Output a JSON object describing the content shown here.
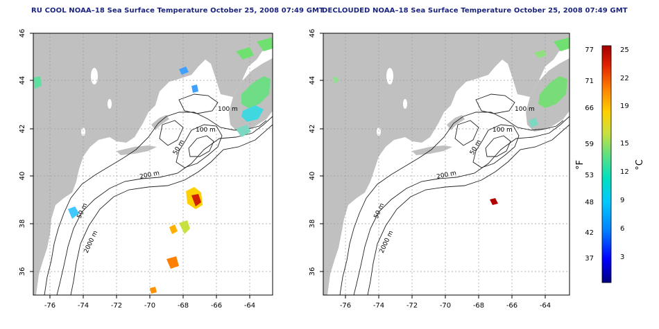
{
  "titles": {
    "left": "RU COOL NOAA–18 Sea Surface Temperature October 25, 2008 07:49 GMT",
    "right": "DECLOUDED NOAA–18 Sea Surface Temperature October 25, 2008 07:49 GMT"
  },
  "axes": {
    "lon_ticks": [
      "-76",
      "-74",
      "-72",
      "-70",
      "-68",
      "-66",
      "-64"
    ],
    "lat_ticks": [
      "46",
      "44",
      "42",
      "40",
      "38",
      "36"
    ]
  },
  "contour_labels": {
    "m100_north": "100 m",
    "m100_gulf": "100 m",
    "m50": "50 m",
    "m200": "200 m",
    "m50_south": "50 m",
    "m2000": "2000 m"
  },
  "colorbar": {
    "fahrenheit_label": "°F",
    "celsius_label": "°C",
    "fahrenheit_ticks": [
      "77",
      "71",
      "66",
      "59",
      "53",
      "48",
      "42",
      "37"
    ],
    "celsius_ticks": [
      "25",
      "22",
      "19",
      "15",
      "12",
      "9",
      "6",
      "3"
    ]
  },
  "colors": {
    "land": "#c0c0c0",
    "ocean": "#ffffff",
    "title": "#1a237e",
    "scale": [
      "#000080",
      "#0000ff",
      "#0080ff",
      "#00c8ff",
      "#00e0c0",
      "#60e080",
      "#c8e040",
      "#ffd000",
      "#ff8000",
      "#e02000",
      "#a00000"
    ]
  }
}
